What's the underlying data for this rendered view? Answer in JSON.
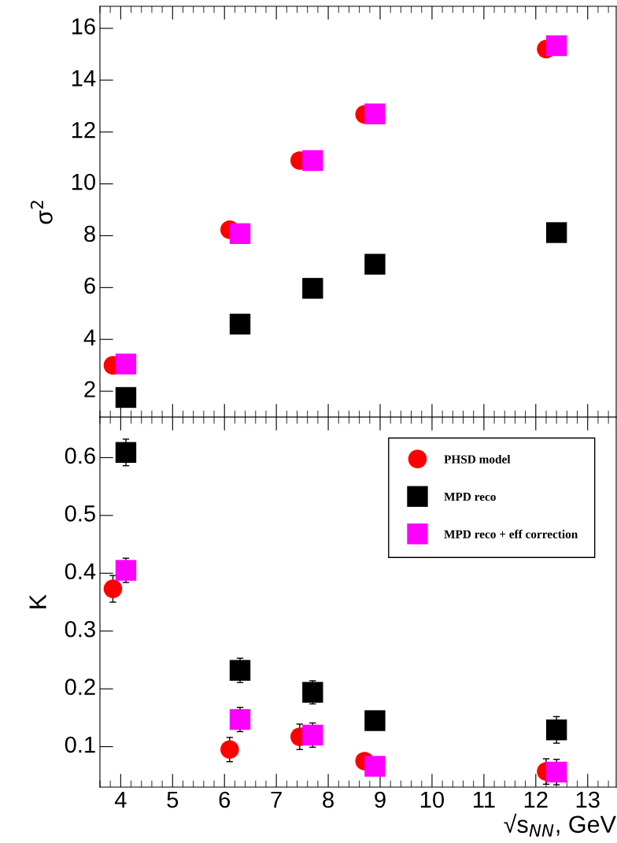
{
  "chart_data": [
    {
      "type": "scatter",
      "ylabel": "σ$^{2}$",
      "xlim": [
        3.6,
        13.55
      ],
      "xticks": [
        4,
        5,
        6,
        7,
        8,
        9,
        10,
        11,
        12,
        13
      ],
      "ylim": [
        1.0,
        16.85
      ],
      "yticks": [
        2,
        4,
        6,
        8,
        10,
        12,
        14,
        16
      ],
      "tick_labels": "y",
      "grid": false,
      "legend": false,
      "series": [
        {
          "color": "#ff0000",
          "marker": "circle",
          "x": [
            3.85,
            6.1,
            7.45,
            8.7,
            12.2
          ],
          "values": [
            3.0,
            8.23,
            10.9,
            12.68,
            15.2
          ]
        },
        {
          "color": "#000000",
          "marker": "square",
          "x": [
            4.1,
            6.3,
            7.7,
            8.9,
            12.4
          ],
          "values": [
            1.76,
            4.59,
            5.97,
            6.9,
            8.12
          ]
        },
        {
          "color": "#ff00ff",
          "marker": "square",
          "x": [
            4.1,
            6.3,
            7.7,
            8.9,
            12.4
          ],
          "values": [
            3.05,
            8.08,
            10.9,
            12.7,
            15.33
          ]
        }
      ]
    },
    {
      "type": "scatter",
      "ylabel": "K",
      "xlabel": "√s$_{NN}$, GeV",
      "xlim": [
        3.6,
        13.55
      ],
      "xticks": [
        4,
        5,
        6,
        7,
        8,
        9,
        10,
        11,
        12,
        13
      ],
      "ylim": [
        0.03,
        0.67
      ],
      "yticks": [
        0.1,
        0.2,
        0.3,
        0.4,
        0.5,
        0.6
      ],
      "grid": false,
      "legend": "top right",
      "series": [
        {
          "name": "PHSD model",
          "color": "#ff0000",
          "marker": "circle",
          "x": [
            3.85,
            6.1,
            7.45,
            8.7,
            12.2
          ],
          "values": [
            0.373,
            0.095,
            0.117,
            0.075,
            0.057
          ],
          "errors": [
            0.023,
            0.021,
            0.022,
            null,
            0.022
          ]
        },
        {
          "name": "MPD reco",
          "color": "#000000",
          "marker": "square",
          "x": [
            4.1,
            6.3,
            7.7,
            8.9,
            12.4
          ],
          "values": [
            0.609,
            0.232,
            0.194,
            0.145,
            0.129
          ],
          "errors": [
            0.023,
            0.021,
            0.02,
            null,
            0.023
          ]
        },
        {
          "name": "MPD reco + eff correction",
          "color": "#ff00ff",
          "marker": "square",
          "x": [
            4.1,
            6.3,
            7.7,
            8.9,
            12.4
          ],
          "values": [
            0.405,
            0.147,
            0.12,
            0.066,
            0.056
          ],
          "errors": [
            0.021,
            0.021,
            0.021,
            null,
            0.022
          ]
        }
      ]
    }
  ]
}
